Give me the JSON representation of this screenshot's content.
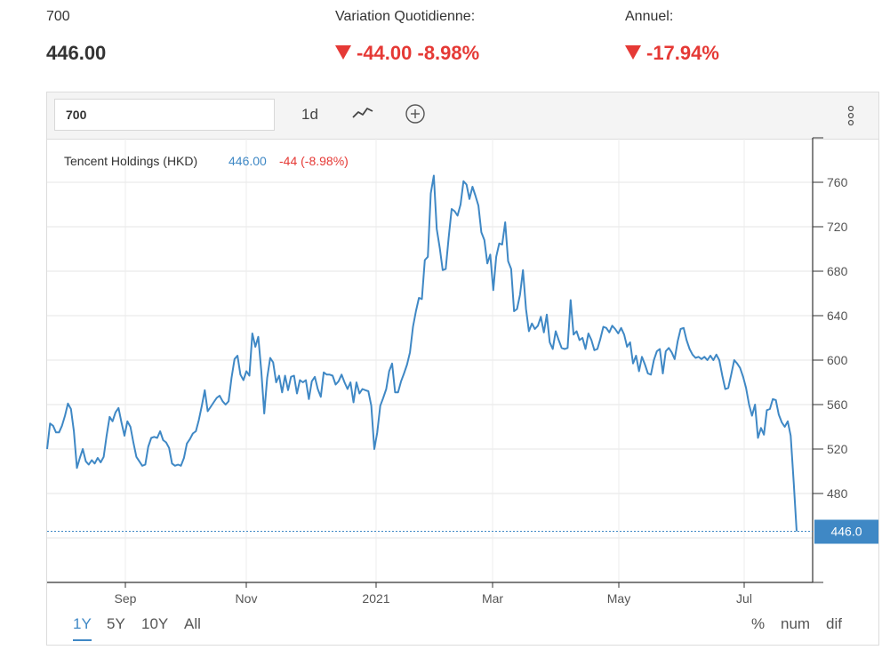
{
  "header": {
    "symbol_label": "700",
    "price": "446.00",
    "daily_label": "Variation Quotidienne:",
    "daily_value": "-44.00 -8.98%",
    "annual_label": "Annuel:",
    "annual_value": "-17.94%"
  },
  "toolbar": {
    "symbol_input": "700",
    "interval": "1d"
  },
  "legend": {
    "name": "Tencent Holdings (HKD)",
    "last": "446.00",
    "change": "-44 (-8.98%)"
  },
  "price_tag": "446.0",
  "ranges": [
    "1Y",
    "5Y",
    "10Y",
    "All"
  ],
  "active_range": "1Y",
  "modes": [
    "%",
    "num",
    "dif"
  ],
  "colors": {
    "line": "#3f88c5",
    "negative": "#e53935"
  },
  "chart_data": {
    "type": "line",
    "title": "Tencent Holdings (HKD)",
    "xlabel": "",
    "ylabel": "",
    "ylim": [
      410,
      800
    ],
    "y_ticks": [
      480,
      520,
      560,
      600,
      640,
      680,
      720,
      760
    ],
    "x_ticks": [
      "Sep",
      "Nov",
      "2021",
      "Mar",
      "May",
      "Jul"
    ],
    "grid": true,
    "series": [
      {
        "name": "Tencent Holdings (HKD)",
        "values": [
          520,
          543,
          541,
          535,
          535,
          541,
          550,
          561,
          556,
          536,
          503,
          512,
          520,
          509,
          506,
          510,
          507,
          512,
          508,
          513,
          532,
          549,
          545,
          553,
          557,
          544,
          532,
          545,
          540,
          526,
          513,
          509,
          505,
          506,
          522,
          530,
          531,
          530,
          536,
          528,
          526,
          521,
          507,
          505,
          506,
          505,
          512,
          525,
          529,
          534,
          536,
          546,
          559,
          573,
          554,
          558,
          562,
          566,
          568,
          563,
          560,
          563,
          584,
          601,
          604,
          587,
          582,
          590,
          586,
          624,
          612,
          621,
          590,
          552,
          584,
          602,
          598,
          580,
          586,
          571,
          586,
          573,
          585,
          586,
          570,
          582,
          580,
          582,
          565,
          581,
          585,
          574,
          567,
          589,
          587,
          587,
          586,
          578,
          581,
          587,
          580,
          574,
          580,
          562,
          580,
          570,
          574,
          573,
          572,
          559,
          520,
          535,
          559,
          566,
          574,
          590,
          597,
          571,
          571,
          581,
          588,
          596,
          607,
          630,
          644,
          656,
          655,
          690,
          693,
          750,
          766,
          718,
          701,
          681,
          682,
          710,
          736,
          734,
          730,
          740,
          761,
          758,
          745,
          756,
          748,
          739,
          715,
          708,
          687,
          695,
          663,
          693,
          705,
          704,
          724,
          689,
          682,
          644,
          646,
          659,
          681,
          646,
          626,
          633,
          628,
          631,
          639,
          625,
          641,
          616,
          610,
          626,
          618,
          611,
          610,
          611,
          654,
          623,
          626,
          618,
          620,
          610,
          624,
          618,
          609,
          610,
          619,
          630,
          629,
          625,
          631,
          628,
          624,
          629,
          623,
          612,
          616,
          597,
          604,
          590,
          603,
          596,
          588,
          587,
          600,
          608,
          610,
          588,
          608,
          611,
          607,
          601,
          617,
          628,
          629,
          618,
          610,
          605,
          602,
          603,
          601,
          603,
          600,
          604,
          600,
          605,
          600,
          586,
          574,
          575,
          587,
          600,
          597,
          593,
          585,
          575,
          560,
          550,
          560,
          530,
          539,
          533,
          555,
          556,
          565,
          564,
          551,
          544,
          540,
          545,
          532,
          490,
          446
        ]
      }
    ]
  }
}
